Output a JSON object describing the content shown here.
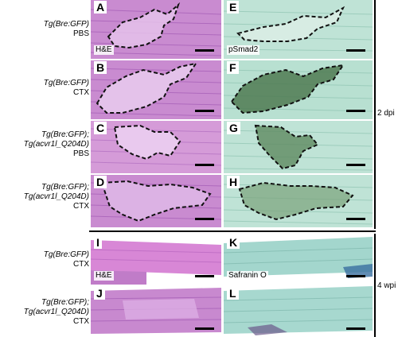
{
  "rows": [
    {
      "genotype": "Tg(Bre:GFP)",
      "condition": "PBS"
    },
    {
      "genotype": "Tg(Bre:GFP)",
      "condition": "CTX"
    },
    {
      "genotype": "Tg(Bre:GFP);",
      "genotype2": "Tg(acvr1l_Q204D)",
      "condition": "PBS"
    },
    {
      "genotype": "Tg(Bre:GFP);",
      "genotype2": "Tg(acvr1l_Q204D)",
      "condition": "CTX"
    },
    {
      "genotype": "Tg(Bre:GFP)",
      "condition": "CTX"
    },
    {
      "genotype": "Tg(Bre:GFP);",
      "genotype2": "Tg(acvr1l_Q204D)",
      "condition": "CTX"
    }
  ],
  "panels": {
    "A": "A",
    "B": "B",
    "C": "C",
    "D": "D",
    "E": "E",
    "F": "F",
    "G": "G",
    "H": "H",
    "I": "I",
    "J": "J",
    "K": "K",
    "L": "L"
  },
  "stains": {
    "he_top": "H&E",
    "psmad2": "pSmad2",
    "he_bottom": "H&E",
    "safranin": "Safranin O"
  },
  "timepoints": {
    "early": "2 dpi",
    "late": "4 wpi"
  },
  "colors": {
    "he": "#c98bd0",
    "he_dark": "#7e3c9c",
    "teal": "#a9d9ca",
    "teal_dark": "#3f6b4a",
    "safranin": "#9fd4cc"
  }
}
